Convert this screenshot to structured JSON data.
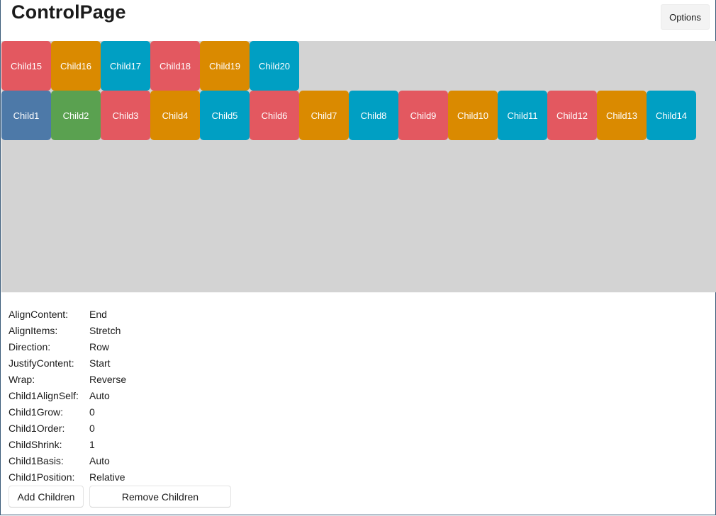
{
  "header": {
    "title": "ControlPage",
    "options_label": "Options"
  },
  "flex_container": {
    "background": "#d3d3d3",
    "rows": [
      {
        "children": [
          {
            "label": "Child15",
            "color": "#e35860"
          },
          {
            "label": "Child16",
            "color": "#da8a00"
          },
          {
            "label": "Child17",
            "color": "#009fc3"
          },
          {
            "label": "Child18",
            "color": "#e35860"
          },
          {
            "label": "Child19",
            "color": "#da8a00"
          },
          {
            "label": "Child20",
            "color": "#009fc3"
          }
        ]
      },
      {
        "children": [
          {
            "label": "Child1",
            "color": "#4d79a8"
          },
          {
            "label": "Child2",
            "color": "#5aa150"
          },
          {
            "label": "Child3",
            "color": "#e35860"
          },
          {
            "label": "Child4",
            "color": "#da8a00"
          },
          {
            "label": "Child5",
            "color": "#009fc3"
          },
          {
            "label": "Child6",
            "color": "#e35860"
          },
          {
            "label": "Child7",
            "color": "#da8a00"
          },
          {
            "label": "Child8",
            "color": "#009fc3"
          },
          {
            "label": "Child9",
            "color": "#e35860"
          },
          {
            "label": "Child10",
            "color": "#da8a00"
          },
          {
            "label": "Child11",
            "color": "#009fc3"
          },
          {
            "label": "Child12",
            "color": "#e35860"
          },
          {
            "label": "Child13",
            "color": "#da8a00"
          },
          {
            "label": "Child14",
            "color": "#009fc3"
          }
        ]
      }
    ]
  },
  "properties": [
    {
      "label": "AlignContent:",
      "value": "End"
    },
    {
      "label": "AlignItems:",
      "value": "Stretch"
    },
    {
      "label": "Direction:",
      "value": "Row"
    },
    {
      "label": "JustifyContent:",
      "value": "Start"
    },
    {
      "label": "Wrap:",
      "value": "Reverse"
    },
    {
      "label": "Child1AlignSelf:",
      "value": "Auto"
    },
    {
      "label": "Child1Grow:",
      "value": "0"
    },
    {
      "label": "Child1Order:",
      "value": "0"
    },
    {
      "label": "ChildShrink:",
      "value": "1"
    },
    {
      "label": "Child1Basis:",
      "value": "Auto"
    },
    {
      "label": "Child1Position:",
      "value": "Relative"
    }
  ],
  "actions": {
    "add_label": "Add Children",
    "remove_label": "Remove Children"
  }
}
